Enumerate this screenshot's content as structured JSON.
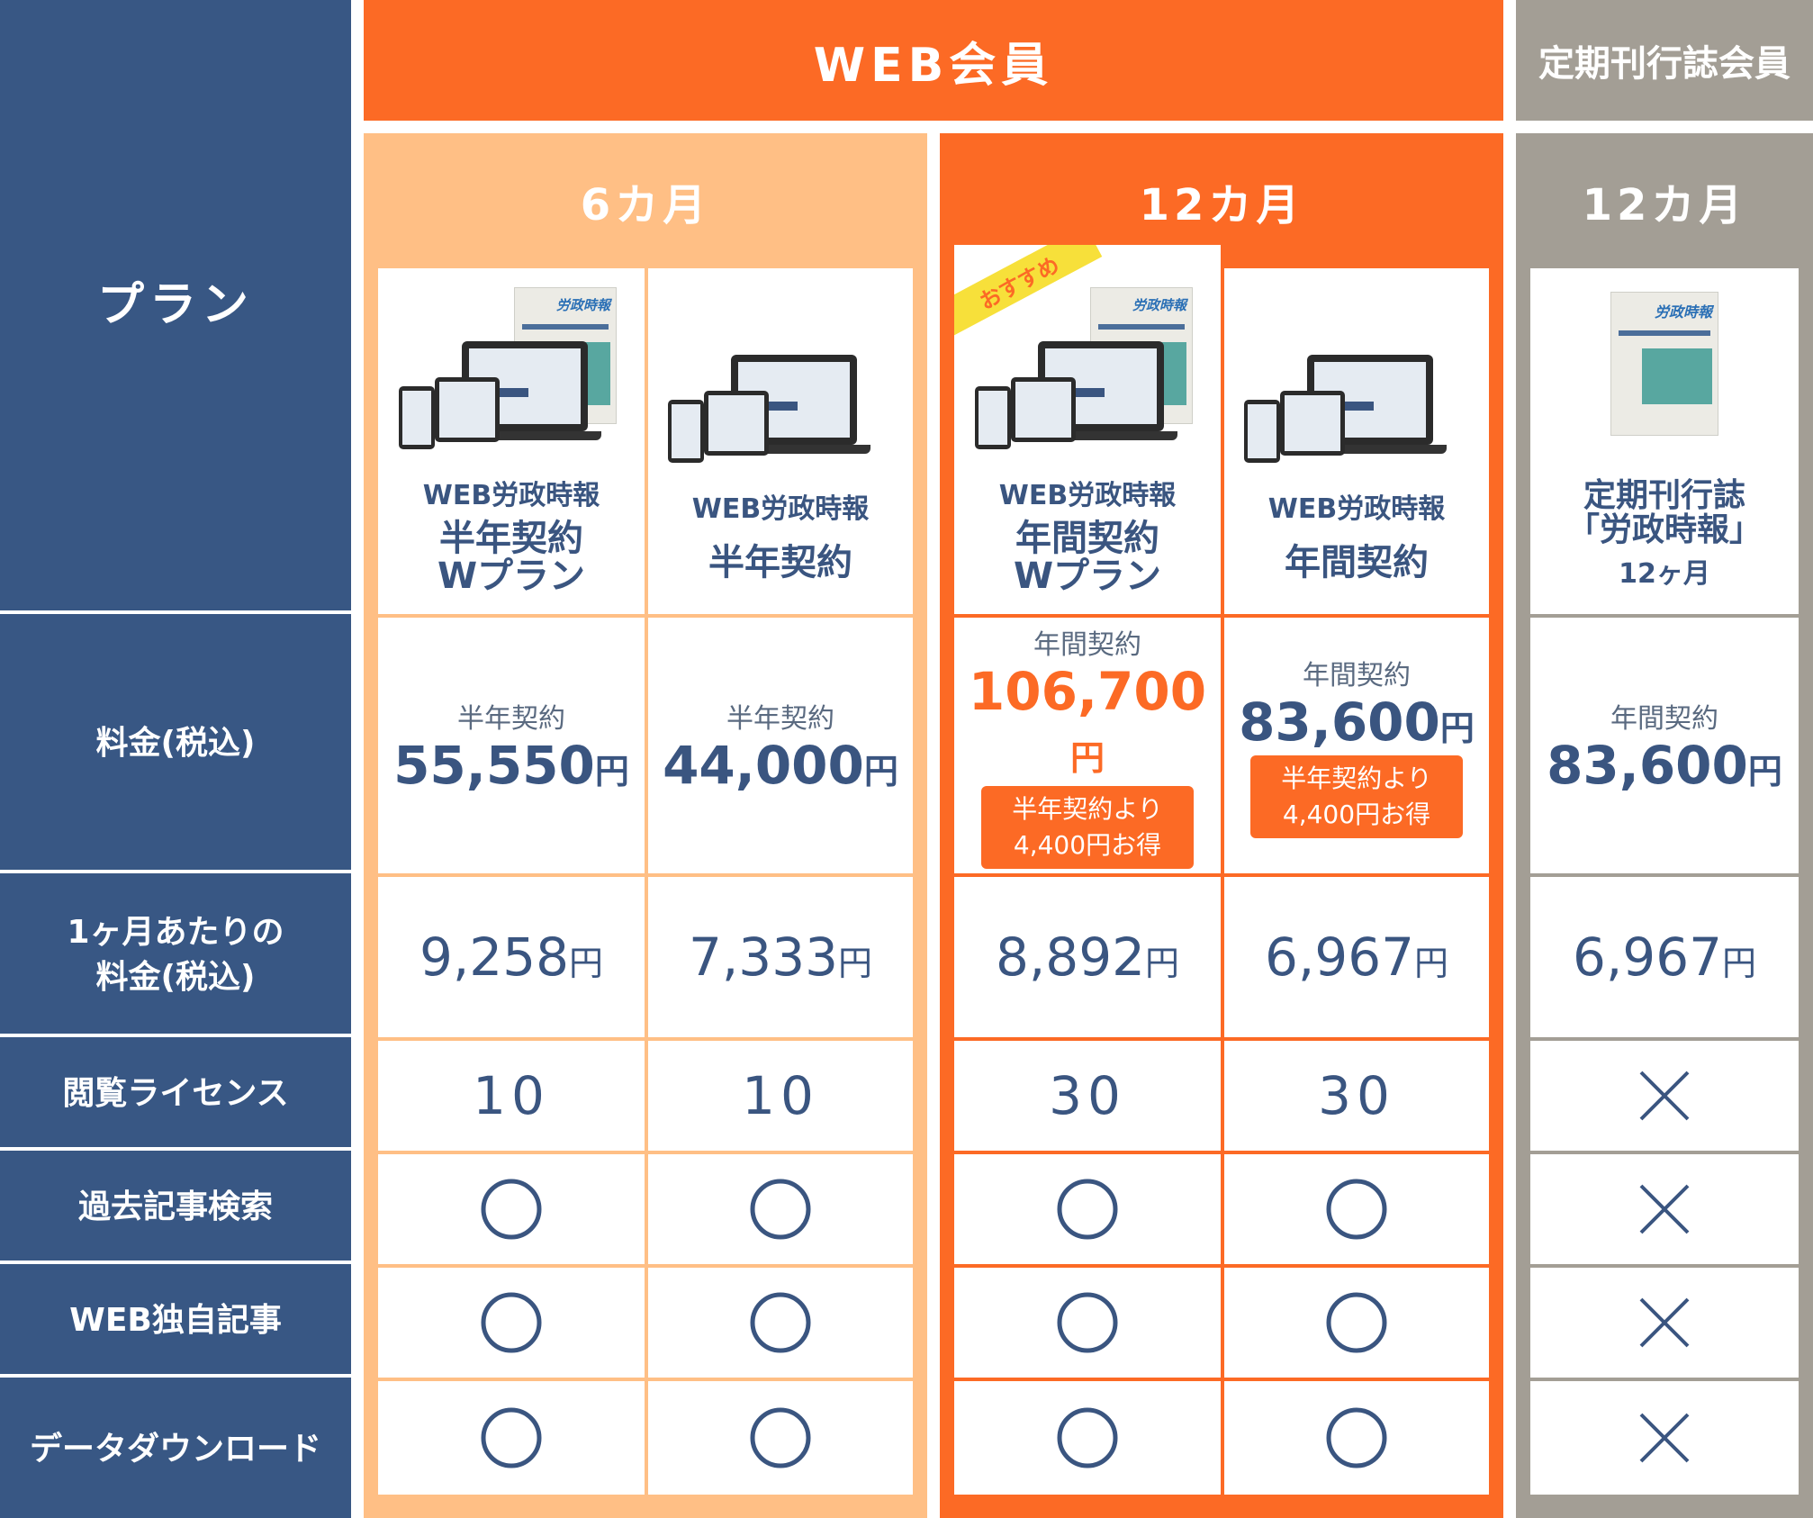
{
  "header": {
    "plan_label": "プラン",
    "web_member": "WEB会員",
    "magazine_member": "定期刊行誌会員",
    "six_months": "6カ月",
    "twelve_months": "12カ月"
  },
  "rows": {
    "price": "料金(税込)",
    "monthly_line1": "1ヶ月あたりの",
    "monthly_line2": "料金(税込)",
    "license": "閲覧ライセンス",
    "archive_search": "過去記事検索",
    "web_articles": "WEB独自記事",
    "data_download": "データダウンロード"
  },
  "recommend_ribbon": "おすすめ",
  "device_mag_title": "労政時報",
  "plans": [
    {
      "name": "WEB労政時報",
      "plan_line1": "半年契約",
      "plan_line2": "Wプラン",
      "price_type": "半年契約",
      "price": "55,550",
      "unit": "円",
      "monthly": "9,258",
      "license": "10",
      "archive": "○",
      "web_only": "○",
      "download": "○"
    },
    {
      "name": "WEB労政時報",
      "plan_line1": "半年契約",
      "plan_line2": "",
      "price_type": "半年契約",
      "price": "44,000",
      "unit": "円",
      "monthly": "7,333",
      "license": "10",
      "archive": "○",
      "web_only": "○",
      "download": "○"
    },
    {
      "name": "WEB労政時報",
      "plan_line1": "年間契約",
      "plan_line2": "Wプラン",
      "price_type": "年間契約",
      "price": "106,700",
      "unit": "円",
      "badge_line1": "半年契約より",
      "badge_line2": "4,400円お得",
      "monthly": "8,892",
      "license": "30",
      "archive": "○",
      "web_only": "○",
      "download": "○"
    },
    {
      "name": "WEB労政時報",
      "plan_line1": "年間契約",
      "plan_line2": "",
      "price_type": "年間契約",
      "price": "83,600",
      "unit": "円",
      "badge_line1": "半年契約より",
      "badge_line2": "4,400円お得",
      "monthly": "6,967",
      "license": "30",
      "archive": "○",
      "web_only": "○",
      "download": "○"
    },
    {
      "name_line1": "定期刊行誌",
      "name_line2": "「労政時報」",
      "name_line3": "12ヶ月",
      "price_type": "年間契約",
      "price": "83,600",
      "unit": "円",
      "monthly": "6,967",
      "license": "×",
      "archive": "×",
      "web_only": "×",
      "download": "×"
    }
  ],
  "colors": {
    "navy": "#385784",
    "orange": "#fc6a25",
    "light_orange": "#ffbf85",
    "gray": "#a39e95",
    "ribbon_yellow": "#f7e03a"
  },
  "icons": {
    "check": "circle-icon",
    "unavailable": "x-icon"
  }
}
